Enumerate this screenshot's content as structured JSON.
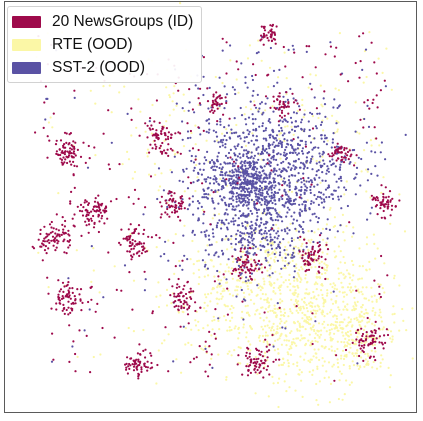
{
  "chart_data": {
    "type": "scatter",
    "title": "",
    "xlabel": "",
    "ylabel": "",
    "axes_visible": false,
    "grid": false,
    "legend_placement": "top-left",
    "series": [
      {
        "name": "20 NewsGroups (ID)",
        "color": "#9e0a4b",
        "clusters": [
          {
            "x": 264,
            "y": 32,
            "spread": 5,
            "count": 40
          },
          {
            "x": 210,
            "y": 103,
            "spread": 6,
            "count": 35
          },
          {
            "x": 277,
            "y": 104,
            "spread": 6,
            "count": 40
          },
          {
            "x": 157,
            "y": 135,
            "spread": 8,
            "count": 70
          },
          {
            "x": 62,
            "y": 150,
            "spread": 8,
            "count": 75
          },
          {
            "x": 335,
            "y": 150,
            "spread": 5,
            "count": 45
          },
          {
            "x": 168,
            "y": 202,
            "spread": 7,
            "count": 55
          },
          {
            "x": 90,
            "y": 210,
            "spread": 9,
            "count": 80
          },
          {
            "x": 379,
            "y": 200,
            "spread": 6,
            "count": 55
          },
          {
            "x": 48,
            "y": 234,
            "spread": 9,
            "count": 75
          },
          {
            "x": 130,
            "y": 240,
            "spread": 7,
            "count": 60
          },
          {
            "x": 242,
            "y": 262,
            "spread": 7,
            "count": 55
          },
          {
            "x": 307,
            "y": 257,
            "spread": 7,
            "count": 55
          },
          {
            "x": 64,
            "y": 297,
            "spread": 8,
            "count": 65
          },
          {
            "x": 178,
            "y": 296,
            "spread": 7,
            "count": 55
          },
          {
            "x": 365,
            "y": 340,
            "spread": 8,
            "count": 65
          },
          {
            "x": 133,
            "y": 363,
            "spread": 7,
            "count": 55
          },
          {
            "x": 252,
            "y": 360,
            "spread": 8,
            "count": 65
          }
        ],
        "scatter_points": 260
      },
      {
        "name": "RTE (OOD)",
        "color": "#fbf7a6",
        "clusters": [
          {
            "x": 300,
            "y": 300,
            "spread": 42,
            "count": 700
          },
          {
            "x": 230,
            "y": 290,
            "spread": 35,
            "count": 250
          },
          {
            "x": 350,
            "y": 330,
            "spread": 22,
            "count": 200
          },
          {
            "x": 180,
            "y": 120,
            "spread": 50,
            "count": 90
          },
          {
            "x": 320,
            "y": 130,
            "spread": 40,
            "count": 60
          }
        ],
        "scatter_points": 120
      },
      {
        "name": "SST-2 (OOD)",
        "color": "#5a52a4",
        "clusters": [
          {
            "x": 242,
            "y": 180,
            "spread": 13,
            "count": 260
          },
          {
            "x": 262,
            "y": 175,
            "spread": 42,
            "count": 1100
          },
          {
            "x": 250,
            "y": 225,
            "spread": 28,
            "count": 180
          }
        ],
        "scatter_points": 60
      }
    ]
  }
}
